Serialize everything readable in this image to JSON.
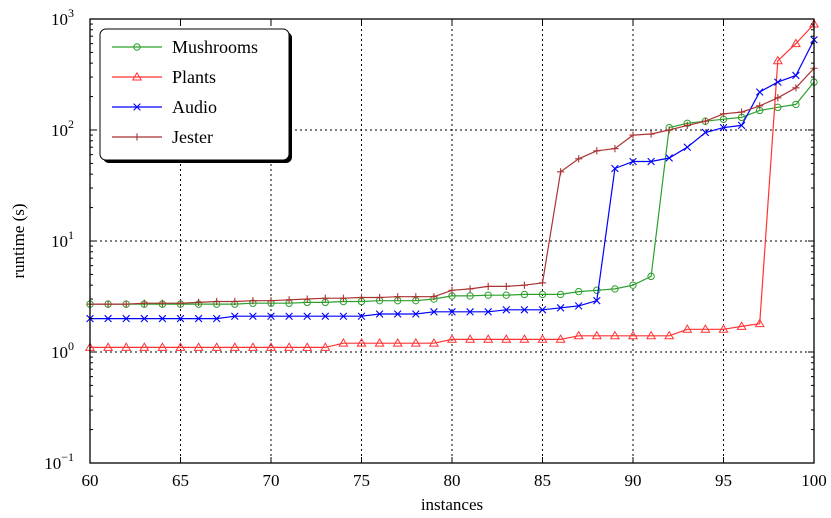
{
  "chart_data": {
    "type": "line",
    "xlabel": "instances",
    "ylabel": "runtime (s)",
    "xlim": [
      60,
      100
    ],
    "ylim": [
      0.1,
      1000
    ],
    "yscale": "log",
    "grid": true,
    "legend_position": "top-left",
    "x_ticks": [
      "60",
      "65",
      "70",
      "75",
      "80",
      "85",
      "90",
      "95",
      "100"
    ],
    "y_ticks": [
      {
        "base": "10",
        "exp": "−1"
      },
      {
        "base": "10",
        "exp": "0"
      },
      {
        "base": "10",
        "exp": "1"
      },
      {
        "base": "10",
        "exp": "2"
      },
      {
        "base": "10",
        "exp": "3"
      }
    ],
    "series": [
      {
        "name": "Mushrooms",
        "color": "#2ca02c",
        "marker": "circle",
        "x": [
          60,
          61,
          62,
          63,
          64,
          65,
          66,
          67,
          68,
          69,
          70,
          71,
          72,
          73,
          74,
          75,
          76,
          77,
          78,
          79,
          80,
          81,
          82,
          83,
          84,
          85,
          86,
          87,
          88,
          89,
          90,
          91,
          92,
          93,
          94,
          95,
          96,
          97,
          98,
          99,
          100
        ],
        "y": [
          2.7,
          2.7,
          2.7,
          2.7,
          2.7,
          2.7,
          2.7,
          2.7,
          2.7,
          2.75,
          2.75,
          2.75,
          2.8,
          2.8,
          2.85,
          2.85,
          2.9,
          2.9,
          2.9,
          3.0,
          3.2,
          3.2,
          3.25,
          3.25,
          3.3,
          3.3,
          3.3,
          3.5,
          3.6,
          3.7,
          4.0,
          4.8,
          105,
          115,
          120,
          125,
          130,
          150,
          160,
          170,
          270
        ]
      },
      {
        "name": "Plants",
        "color": "#ff3333",
        "marker": "triangle",
        "x": [
          60,
          61,
          62,
          63,
          64,
          65,
          66,
          67,
          68,
          69,
          70,
          71,
          72,
          73,
          74,
          75,
          76,
          77,
          78,
          79,
          80,
          81,
          82,
          83,
          84,
          85,
          86,
          87,
          88,
          89,
          90,
          91,
          92,
          93,
          94,
          95,
          96,
          97,
          98,
          99,
          100
        ],
        "y": [
          1.1,
          1.1,
          1.1,
          1.1,
          1.1,
          1.1,
          1.1,
          1.1,
          1.1,
          1.1,
          1.1,
          1.1,
          1.1,
          1.1,
          1.2,
          1.2,
          1.2,
          1.2,
          1.2,
          1.2,
          1.3,
          1.3,
          1.3,
          1.3,
          1.3,
          1.3,
          1.3,
          1.4,
          1.4,
          1.4,
          1.4,
          1.4,
          1.4,
          1.6,
          1.6,
          1.6,
          1.7,
          1.8,
          420,
          600,
          900
        ]
      },
      {
        "name": "Audio",
        "color": "#0000ff",
        "marker": "x",
        "x": [
          60,
          61,
          62,
          63,
          64,
          65,
          66,
          67,
          68,
          69,
          70,
          71,
          72,
          73,
          74,
          75,
          76,
          77,
          78,
          79,
          80,
          81,
          82,
          83,
          84,
          85,
          86,
          87,
          88,
          89,
          90,
          91,
          92,
          93,
          94,
          95,
          96,
          97,
          98,
          99,
          100
        ],
        "y": [
          2.0,
          2.0,
          2.0,
          2.0,
          2.0,
          2.0,
          2.0,
          2.0,
          2.1,
          2.1,
          2.1,
          2.1,
          2.1,
          2.1,
          2.1,
          2.1,
          2.2,
          2.2,
          2.2,
          2.3,
          2.3,
          2.3,
          2.3,
          2.4,
          2.4,
          2.4,
          2.5,
          2.6,
          2.9,
          45,
          52,
          52,
          56,
          70,
          95,
          105,
          110,
          220,
          270,
          310,
          650
        ]
      },
      {
        "name": "Jester",
        "color": "#aa3333",
        "marker": "plus",
        "x": [
          60,
          61,
          62,
          63,
          64,
          65,
          66,
          67,
          68,
          69,
          70,
          71,
          72,
          73,
          74,
          75,
          76,
          77,
          78,
          79,
          80,
          81,
          82,
          83,
          84,
          85,
          86,
          87,
          88,
          89,
          90,
          91,
          92,
          93,
          94,
          95,
          96,
          97,
          98,
          99,
          100
        ],
        "y": [
          2.7,
          2.7,
          2.7,
          2.75,
          2.75,
          2.75,
          2.8,
          2.85,
          2.85,
          2.9,
          2.9,
          2.95,
          3.0,
          3.05,
          3.05,
          3.1,
          3.1,
          3.15,
          3.15,
          3.15,
          3.6,
          3.7,
          3.9,
          3.9,
          4.0,
          4.2,
          42,
          55,
          65,
          68,
          90,
          92,
          100,
          110,
          120,
          140,
          145,
          165,
          195,
          240,
          360
        ]
      }
    ]
  }
}
